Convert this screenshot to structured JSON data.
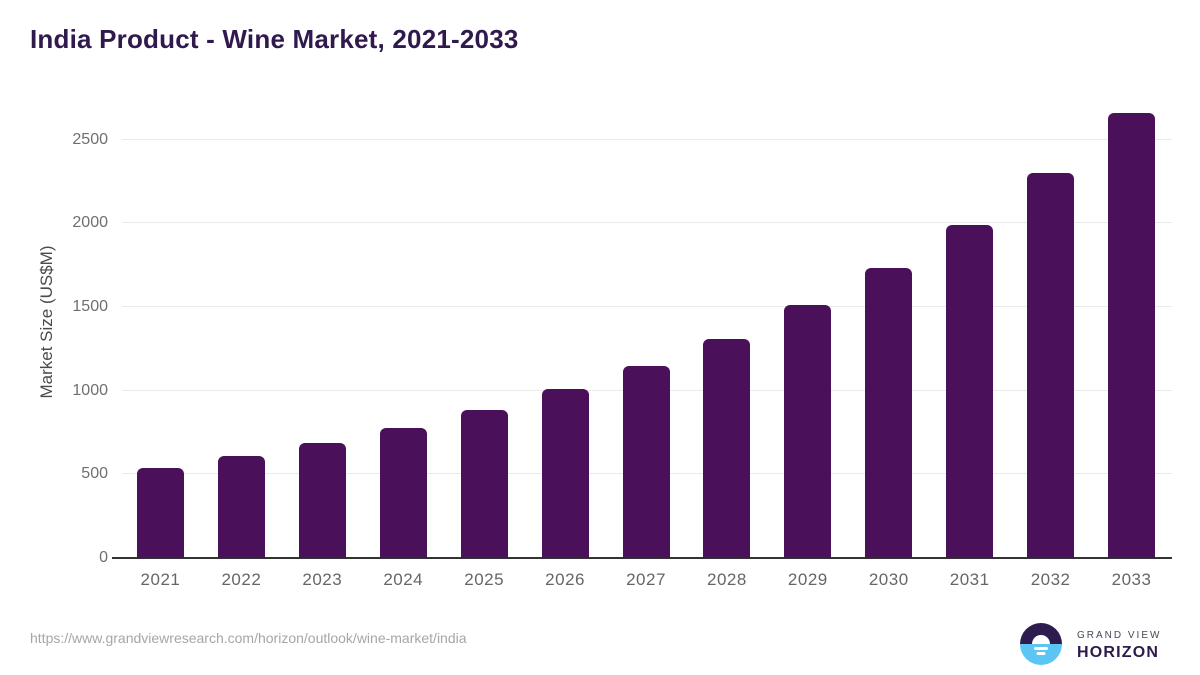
{
  "header": {
    "title": "India Product - Wine Market, 2021-2033"
  },
  "chart_data": {
    "type": "bar",
    "title": "India Product - Wine Market, 2021-2033",
    "xlabel": "",
    "ylabel": "Market Size (US$M)",
    "categories": [
      "2021",
      "2022",
      "2023",
      "2024",
      "2025",
      "2026",
      "2027",
      "2028",
      "2029",
      "2030",
      "2031",
      "2032",
      "2033"
    ],
    "values": [
      540,
      612,
      690,
      778,
      885,
      1010,
      1150,
      1310,
      1510,
      1730,
      1990,
      2300,
      2660
    ],
    "yticks": [
      0,
      500,
      1000,
      1500,
      2000,
      2500
    ],
    "ylim": [
      0,
      2736
    ],
    "grid": "horizontal",
    "legend": "none",
    "bar_color": "#4a1059"
  },
  "footer": {
    "source_url": "https://www.grandviewresearch.com/horizon/outlook/wine-market/india",
    "logo": {
      "icon": "sunrise-horizon-icon",
      "line1": "GRAND VIEW",
      "line2": "HORIZON"
    }
  },
  "colors": {
    "bar": "#4a1059",
    "title": "#30194d",
    "y_axis_title": "#4a4a4a",
    "tick_label": "#6f6f6f",
    "gridline": "#eaeaea",
    "axis_line": "#333333",
    "source_url": "#a6a6a6",
    "logo_top_half": "#2d1c4e",
    "logo_bottom_half": "#5bc6f3",
    "logo_horizon_text": "#2d1a4d",
    "logo_grandview_text": "#47475a"
  }
}
